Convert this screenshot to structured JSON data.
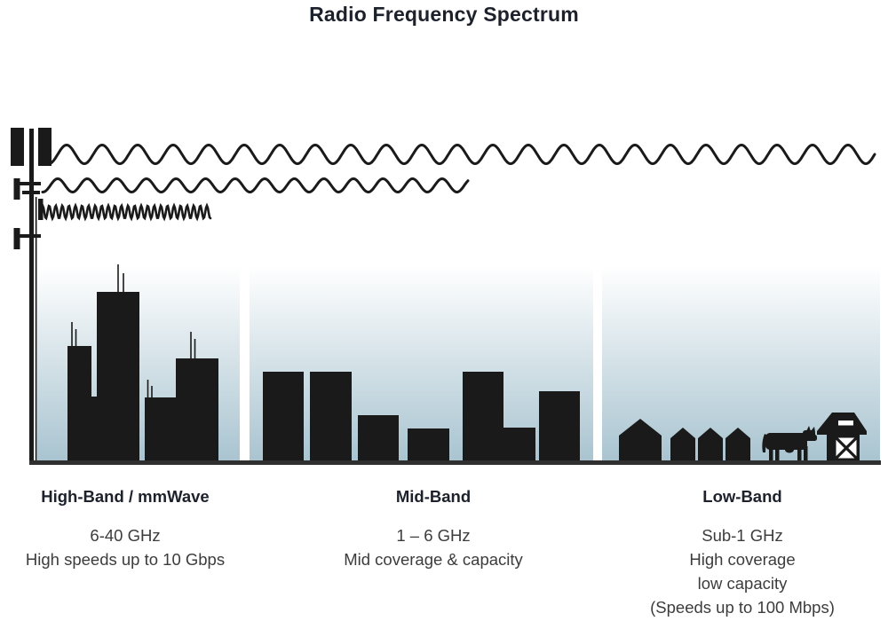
{
  "title": "Radio Frequency Spectrum",
  "bands": [
    {
      "name": "High-Band / mmWave",
      "details": [
        "6-40 GHz",
        "High speeds up to 10 Gbps"
      ]
    },
    {
      "name": "Mid-Band",
      "details": [
        "1 – 6 GHz",
        "Mid coverage & capacity"
      ]
    },
    {
      "name": "Low-Band",
      "details": [
        "Sub-1 GHz",
        "High coverage",
        "low capacity",
        "(Speeds up to 100 Mbps)"
      ]
    }
  ],
  "icons": {
    "cell-tower-icon": "radio mast with antenna panels",
    "low-frequency-wave-icon": "long-wavelength sine wave (low band)",
    "mid-frequency-wave-icon": "medium-wavelength sine wave (mid band)",
    "high-frequency-wave-icon": "short-wavelength sine wave (high band / mmWave)",
    "high-band-skyline-icon": "dense downtown skyscrapers with antennas",
    "mid-band-skyline-icon": "mid-rise city buildings",
    "low-band-houses-icon": "suburban houses",
    "cow-icon": "cow silhouette",
    "barn-icon": "barn silhouette"
  },
  "colors": {
    "silhouette": "#1a1a1a",
    "sky_top": "#ffffff",
    "sky_bottom": "#a9c4d0",
    "heading_text": "#1c212b",
    "body_text": "#3c3c3c",
    "baseline": "#2f2f2f"
  }
}
